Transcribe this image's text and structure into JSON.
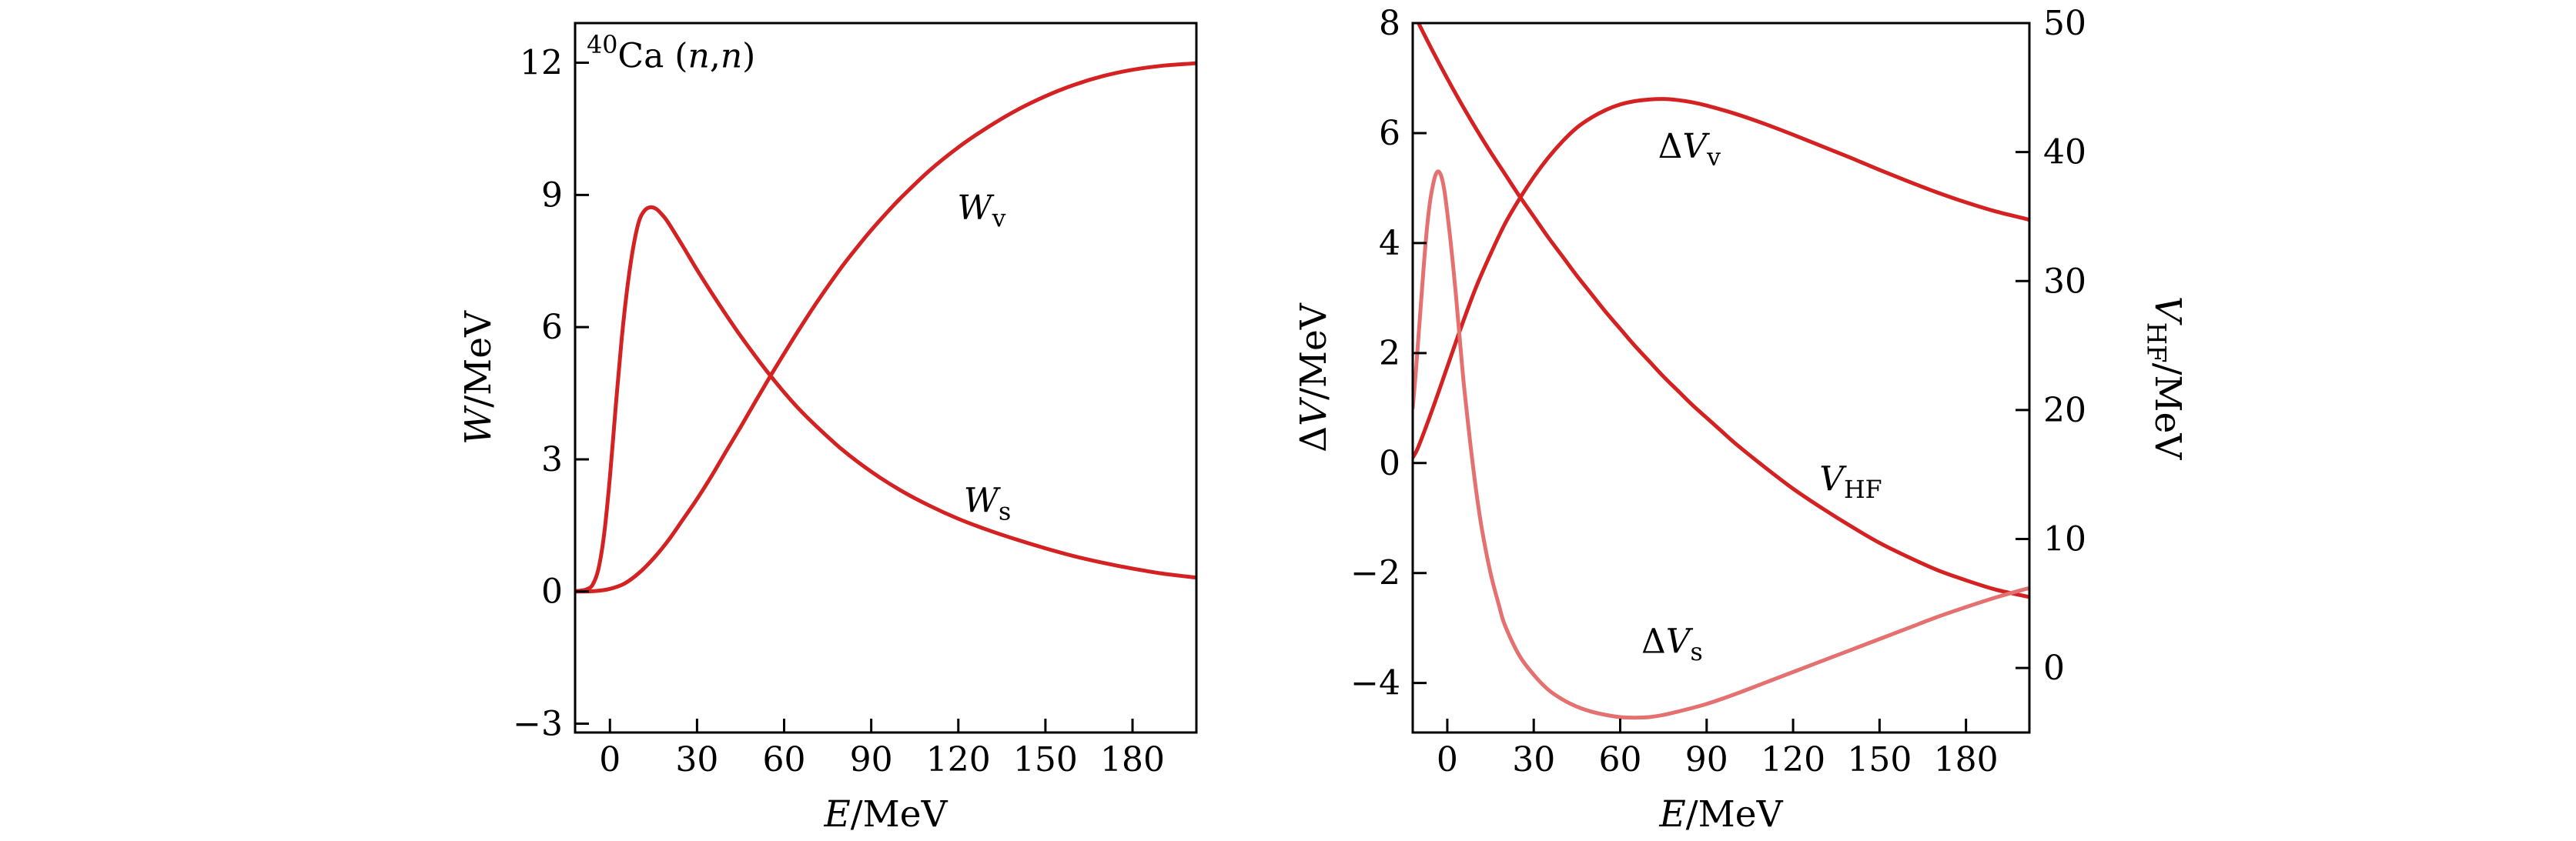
{
  "figure": {
    "background": "#ffffff",
    "colors": {
      "frame": "#000000",
      "text": "#000000",
      "red": "#d42222",
      "light_red": "#e57070"
    }
  },
  "chart_data": [
    {
      "id": "left",
      "type": "line",
      "x_axis": {
        "min": -12,
        "max": 202,
        "title_parts": [
          {
            "t": "E",
            "style": "italic"
          },
          {
            "t": "/MeV",
            "style": "normal"
          }
        ],
        "ticks": [
          {
            "v": 0,
            "label": "0"
          },
          {
            "v": 30,
            "label": "30"
          },
          {
            "v": 60,
            "label": "60"
          },
          {
            "v": 90,
            "label": "90"
          },
          {
            "v": 120,
            "label": "120"
          },
          {
            "v": 150,
            "label": "150"
          },
          {
            "v": 180,
            "label": "180"
          }
        ]
      },
      "y_axis": {
        "min": -3.2,
        "max": 12.9,
        "title_parts": [
          {
            "t": "W",
            "style": "italic"
          },
          {
            "t": "/MeV",
            "style": "normal"
          }
        ],
        "ticks": [
          {
            "v": -3,
            "label": "−3"
          },
          {
            "v": 0,
            "label": "0"
          },
          {
            "v": 3,
            "label": "3"
          },
          {
            "v": 6,
            "label": "6"
          },
          {
            "v": 9,
            "label": "9"
          },
          {
            "v": 12,
            "label": "12"
          }
        ]
      },
      "series": [
        {
          "name": "Ws",
          "label": "W_s",
          "color": "red",
          "width": 5,
          "x": [
            -12,
            -10,
            -8,
            -6,
            -4,
            -2,
            0,
            2,
            4,
            6,
            8,
            10,
            12,
            14,
            16,
            18,
            20,
            25,
            30,
            35,
            40,
            45,
            50,
            55,
            60,
            65,
            70,
            80,
            90,
            100,
            110,
            120,
            130,
            140,
            150,
            160,
            170,
            180,
            190,
            200,
            202
          ],
          "y": [
            0.01,
            0.02,
            0.05,
            0.15,
            0.5,
            1.3,
            2.6,
            4.2,
            5.7,
            6.9,
            7.8,
            8.4,
            8.65,
            8.72,
            8.68,
            8.55,
            8.38,
            7.85,
            7.3,
            6.78,
            6.28,
            5.8,
            5.35,
            4.92,
            4.52,
            4.15,
            3.82,
            3.22,
            2.72,
            2.3,
            1.95,
            1.65,
            1.4,
            1.18,
            0.98,
            0.8,
            0.65,
            0.52,
            0.41,
            0.33,
            0.32
          ]
        },
        {
          "name": "Wv",
          "label": "W_v",
          "color": "red",
          "width": 5,
          "x": [
            -12,
            -5,
            0,
            5,
            10,
            15,
            20,
            25,
            30,
            35,
            40,
            45,
            50,
            55,
            60,
            65,
            70,
            75,
            80,
            85,
            90,
            95,
            100,
            110,
            120,
            130,
            140,
            150,
            160,
            170,
            180,
            190,
            200,
            202
          ],
          "y": [
            0,
            0.01,
            0.06,
            0.18,
            0.42,
            0.75,
            1.15,
            1.62,
            2.1,
            2.62,
            3.18,
            3.73,
            4.3,
            4.86,
            5.4,
            5.93,
            6.44,
            6.92,
            7.38,
            7.8,
            8.2,
            8.57,
            8.92,
            9.55,
            10.08,
            10.53,
            10.92,
            11.24,
            11.5,
            11.7,
            11.84,
            11.93,
            11.98,
            11.99
          ]
        }
      ],
      "annotations": [
        {
          "name": "isotope-label",
          "x": -8,
          "y": 11.9,
          "anchor": "start",
          "parts": [
            {
              "t": "40",
              "style": "sup"
            },
            {
              "t": "Ca (",
              "style": "normal"
            },
            {
              "t": "n",
              "style": "italic"
            },
            {
              "t": ",",
              "style": "normal"
            },
            {
              "t": "n",
              "style": "italic"
            },
            {
              "t": ")",
              "style": "normal"
            }
          ]
        },
        {
          "name": "Wv-label",
          "x": 128,
          "y": 8.45,
          "anchor": "middle",
          "parts": [
            {
              "t": "W",
              "style": "italic"
            },
            {
              "t": "v",
              "style": "sub"
            }
          ]
        },
        {
          "name": "Ws-label",
          "x": 130,
          "y": 1.8,
          "anchor": "middle",
          "parts": [
            {
              "t": "W",
              "style": "italic"
            },
            {
              "t": "s",
              "style": "sub"
            }
          ]
        }
      ]
    },
    {
      "id": "right",
      "type": "line",
      "x_axis": {
        "min": -12,
        "max": 202,
        "title_parts": [
          {
            "t": "E",
            "style": "italic"
          },
          {
            "t": "/MeV",
            "style": "normal"
          }
        ],
        "ticks": [
          {
            "v": 0,
            "label": "0"
          },
          {
            "v": 30,
            "label": "30"
          },
          {
            "v": 60,
            "label": "60"
          },
          {
            "v": 90,
            "label": "90"
          },
          {
            "v": 120,
            "label": "120"
          },
          {
            "v": 150,
            "label": "150"
          },
          {
            "v": 180,
            "label": "180"
          }
        ]
      },
      "y_axis": {
        "min": -4.9,
        "max": 8,
        "title_parts": [
          {
            "t": "Δ",
            "style": "normal"
          },
          {
            "t": "V",
            "style": "italic"
          },
          {
            "t": "/MeV",
            "style": "normal"
          }
        ],
        "ticks": [
          {
            "v": -4,
            "label": "−4"
          },
          {
            "v": -2,
            "label": "−2"
          },
          {
            "v": 0,
            "label": "0"
          },
          {
            "v": 2,
            "label": "2"
          },
          {
            "v": 4,
            "label": "4"
          },
          {
            "v": 6,
            "label": "6"
          },
          {
            "v": 8,
            "label": "8"
          }
        ]
      },
      "y2_axis": {
        "min": -5.0,
        "max": 50,
        "title_parts": [
          {
            "t": "V",
            "style": "italic"
          },
          {
            "t": "HF",
            "style": "sub"
          },
          {
            "t": "/MeV",
            "style": "normal"
          }
        ],
        "ticks": [
          {
            "v": 0,
            "label": "0"
          },
          {
            "v": 10,
            "label": "10"
          },
          {
            "v": 20,
            "label": "20"
          },
          {
            "v": 30,
            "label": "30"
          },
          {
            "v": 40,
            "label": "40"
          },
          {
            "v": 50,
            "label": "50"
          }
        ]
      },
      "series": [
        {
          "name": "dVv",
          "label": "ΔV_v",
          "color": "red",
          "width": 5,
          "x": [
            -12,
            -10,
            -5,
            0,
            5,
            10,
            15,
            20,
            25,
            30,
            35,
            40,
            45,
            50,
            55,
            60,
            65,
            70,
            75,
            80,
            85,
            90,
            100,
            110,
            120,
            130,
            140,
            150,
            160,
            170,
            180,
            190,
            200,
            202
          ],
          "y": [
            0.1,
            0.3,
            1.0,
            1.75,
            2.5,
            3.2,
            3.8,
            4.35,
            4.8,
            5.2,
            5.55,
            5.85,
            6.1,
            6.28,
            6.42,
            6.52,
            6.58,
            6.61,
            6.62,
            6.6,
            6.56,
            6.5,
            6.35,
            6.17,
            5.97,
            5.76,
            5.55,
            5.33,
            5.12,
            4.92,
            4.74,
            4.58,
            4.45,
            4.42
          ]
        },
        {
          "name": "VHF",
          "label": "V_HF",
          "color": "red",
          "width": 5,
          "axis": "y2",
          "x": [
            -12,
            -10,
            -5,
            0,
            5,
            10,
            15,
            20,
            25,
            30,
            35,
            40,
            45,
            50,
            55,
            60,
            65,
            70,
            75,
            80,
            85,
            90,
            95,
            100,
            110,
            120,
            130,
            140,
            150,
            160,
            170,
            180,
            190,
            200,
            202
          ],
          "y": [
            50.9,
            50.0,
            47.8,
            45.7,
            43.7,
            41.8,
            40.0,
            38.3,
            36.6,
            35.0,
            33.4,
            31.9,
            30.4,
            29.0,
            27.6,
            26.3,
            25.0,
            23.8,
            22.6,
            21.5,
            20.4,
            19.4,
            18.4,
            17.4,
            15.6,
            13.9,
            12.4,
            11.0,
            9.7,
            8.6,
            7.6,
            6.8,
            6.1,
            5.6,
            5.5
          ]
        },
        {
          "name": "dVs",
          "label": "ΔV_s",
          "color": "light_red",
          "width": 5,
          "x": [
            -12,
            -11,
            -10,
            -9,
            -8,
            -7,
            -6,
            -5,
            -4,
            -3,
            -2,
            -1,
            0,
            1,
            2,
            3,
            4,
            5,
            6,
            8,
            10,
            12,
            15,
            18,
            20,
            25,
            30,
            35,
            40,
            45,
            50,
            55,
            60,
            65,
            70,
            75,
            80,
            90,
            100,
            110,
            120,
            130,
            140,
            150,
            160,
            170,
            180,
            190,
            200,
            202
          ],
          "y": [
            1.0,
            1.6,
            2.3,
            3.0,
            3.7,
            4.3,
            4.75,
            5.05,
            5.25,
            5.3,
            5.2,
            4.95,
            4.55,
            4.1,
            3.6,
            3.05,
            2.45,
            1.85,
            1.3,
            0.35,
            -0.5,
            -1.2,
            -2.0,
            -2.6,
            -2.95,
            -3.5,
            -3.85,
            -4.12,
            -4.3,
            -4.43,
            -4.52,
            -4.58,
            -4.62,
            -4.63,
            -4.62,
            -4.58,
            -4.52,
            -4.38,
            -4.2,
            -4.0,
            -3.8,
            -3.6,
            -3.4,
            -3.2,
            -3.0,
            -2.8,
            -2.62,
            -2.45,
            -2.3,
            -2.28
          ]
        }
      ],
      "annotations": [
        {
          "name": "dVv-label",
          "x": 84,
          "y": 5.55,
          "anchor": "middle",
          "parts": [
            {
              "t": "Δ",
              "style": "normal"
            },
            {
              "t": "V",
              "style": "italic"
            },
            {
              "t": "v",
              "style": "sub"
            }
          ]
        },
        {
          "name": "VHF-label",
          "x": 140,
          "y": -0.5,
          "anchor": "middle",
          "parts": [
            {
              "t": "V",
              "style": "italic"
            },
            {
              "t": "HF",
              "style": "sub"
            }
          ]
        },
        {
          "name": "dVs-label",
          "x": 78,
          "y": -3.45,
          "anchor": "middle",
          "parts": [
            {
              "t": "Δ",
              "style": "normal"
            },
            {
              "t": "V",
              "style": "italic"
            },
            {
              "t": "s",
              "style": "sub"
            }
          ]
        }
      ]
    }
  ]
}
